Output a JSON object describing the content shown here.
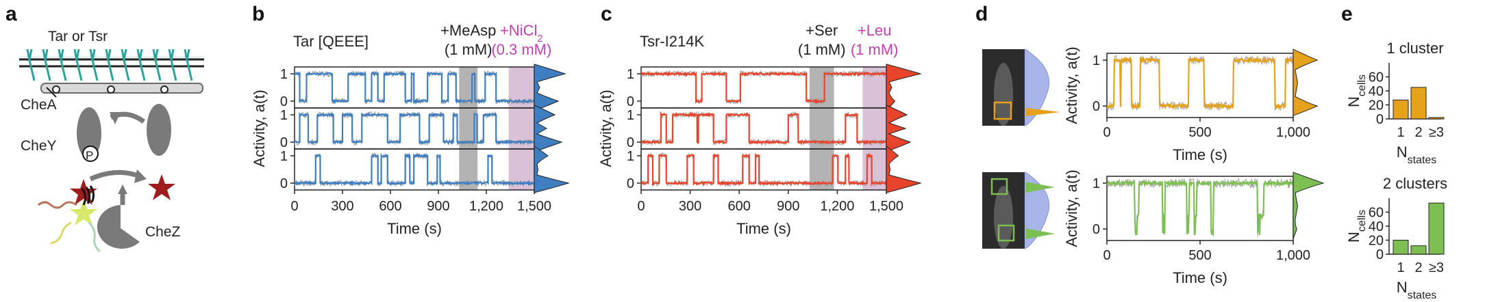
{
  "colors": {
    "tar": "#3f7fc1",
    "tsr": "#e8442b",
    "cluster1": "#e6a21a",
    "cluster2": "#7dbf52",
    "magenta": "#c03fae",
    "grey_band": "#9a9a9a",
    "pink_band": "#c9a8c7",
    "cell_density": "#a9b5e8"
  },
  "panel_labels": [
    "a",
    "b",
    "c",
    "d",
    "e"
  ],
  "panel_a": {
    "labels": {
      "receptor": "Tar or Tsr",
      "chea": "CheA",
      "chey": "CheY",
      "p": "P",
      "chez": "CheZ"
    },
    "icons": [
      "receptor-array-icon",
      "kinase-icon",
      "response-regulator-icon",
      "phosphatase-icon",
      "cycle-arrow-icon"
    ]
  },
  "chart_data": [
    {
      "type": "line",
      "panel": "b",
      "title": "Tar [QEEE]",
      "xlabel": "Time (s)",
      "ylabel": "Activity, a(t)",
      "xlim": [
        0,
        1500
      ],
      "ylim": [
        -0.25,
        1.25
      ],
      "xticks": [
        "0",
        "300",
        "600",
        "900",
        "1,200",
        "1,500"
      ],
      "yticks": [
        "0",
        "1"
      ],
      "color": "#3f7fc1",
      "annotations": [
        {
          "text": "+MeAsp",
          "sub": "(1 mM)",
          "start": 1030,
          "end": 1145,
          "color": "#222222"
        },
        {
          "text": "+NiCl",
          "subscript": "2",
          "sub": "(0.3 mM)",
          "start": 1340,
          "end": 1500,
          "color": "#c03fae"
        }
      ],
      "traces": [
        {
          "on_intervals": [
            [
              0,
              30
            ],
            [
              75,
              235
            ],
            [
              335,
              440
            ],
            [
              480,
              520
            ],
            [
              560,
              690
            ],
            [
              730,
              745
            ],
            [
              830,
              920
            ],
            [
              960,
              1010
            ],
            [
              1110,
              1125
            ],
            [
              1190,
              1260
            ]
          ],
          "density": [
            0.9,
            0.1,
            0.7
          ]
        },
        {
          "on_intervals": [
            [
              30,
              85
            ],
            [
              140,
              240
            ],
            [
              300,
              360
            ],
            [
              420,
              580
            ],
            [
              660,
              780
            ],
            [
              840,
              930
            ],
            [
              990,
              1015
            ],
            [
              1125,
              1140
            ],
            [
              1180,
              1260
            ]
          ],
          "density": [
            0.6,
            0.3,
            0.8
          ]
        },
        {
          "on_intervals": [
            [
              130,
              160
            ],
            [
              480,
              520
            ],
            [
              540,
              580
            ],
            [
              690,
              720
            ],
            [
              745,
              830
            ],
            [
              890,
              910
            ],
            [
              1210,
              1235
            ]
          ],
          "density": [
            0.4,
            0.05,
            1.0
          ]
        }
      ]
    },
    {
      "type": "line",
      "panel": "c",
      "title": "Tsr-I214K",
      "xlabel": "Time (s)",
      "ylabel": "Activity, a(t)",
      "xlim": [
        0,
        1500
      ],
      "ylim": [
        -0.25,
        1.25
      ],
      "xticks": [
        "0",
        "300",
        "600",
        "900",
        "1,200",
        "1,500"
      ],
      "yticks": [
        "0",
        "1"
      ],
      "color": "#e8442b",
      "annotations": [
        {
          "text": "+Ser",
          "sub": "(1 mM)",
          "start": 1030,
          "end": 1180,
          "color": "#222222"
        },
        {
          "text": "+Leu",
          "sub": "(1 mM)",
          "start": 1355,
          "end": 1500,
          "color": "#c03fae"
        }
      ],
      "traces": [
        {
          "on_intervals": [
            [
              0,
              335
            ],
            [
              370,
              520
            ],
            [
              605,
              1010
            ],
            [
              1120,
              1500
            ]
          ],
          "density": [
            1.0,
            0.1,
            0.25
          ]
        },
        {
          "on_intervals": [
            [
              120,
              150
            ],
            [
              190,
              340
            ],
            [
              350,
              440
            ],
            [
              520,
              660
            ],
            [
              900,
              960
            ],
            [
              1250,
              1320
            ]
          ],
          "density": [
            0.6,
            0.5,
            0.7
          ]
        },
        {
          "on_intervals": [
            [
              40,
              70
            ],
            [
              110,
              150
            ],
            [
              280,
              320
            ],
            [
              440,
              470
            ],
            [
              620,
              660
            ],
            [
              700,
              720
            ],
            [
              1170,
              1200
            ],
            [
              1250,
              1270
            ],
            [
              1380,
              1410
            ]
          ],
          "density": [
            0.35,
            0.05,
            1.0
          ]
        }
      ]
    },
    {
      "type": "line",
      "panel": "d",
      "title": "",
      "xlabel": "Time (s)",
      "ylabel": "Activity, a(t)",
      "xlim": [
        0,
        1000
      ],
      "ylim": [
        -0.25,
        1.15
      ],
      "xticks": [
        "0",
        "500",
        "1,000"
      ],
      "yticks": [
        "0",
        "1"
      ],
      "traces": [
        {
          "name": "",
          "color": "#e6a21a",
          "on_intervals": [
            [
              40,
              70
            ],
            [
              75,
              130
            ],
            [
              180,
              280
            ],
            [
              440,
              520
            ],
            [
              680,
              900
            ],
            [
              960,
              1000
            ]
          ],
          "density": [
            0.8,
            0.1,
            0.8
          ]
        },
        {
          "name": "",
          "color": "#7dbf52",
          "on_intervals": [
            [
              0,
              150
            ],
            [
              170,
              430
            ],
            [
              440,
              470
            ],
            [
              480,
              810
            ],
            [
              840,
              1000
            ]
          ],
          "dips": [
            [
              150,
              170
            ],
            [
              430,
              440
            ],
            [
              470,
              480
            ],
            [
              810,
              840
            ],
            [
              300,
              310
            ],
            [
              560,
              570
            ]
          ],
          "density": [
            1.0,
            0.1,
            0.12
          ]
        }
      ]
    },
    {
      "type": "bar",
      "panel": "e",
      "subplots": [
        {
          "title": "1 cluster",
          "categories": [
            "1",
            "2",
            "≥3"
          ],
          "values": [
            27,
            45,
            2
          ],
          "color": "#e6a21a",
          "ylim": [
            0,
            80
          ],
          "yticks": [
            "0",
            "20",
            "40",
            "60"
          ],
          "ylabel": "N",
          "ylabel_sub": "cells",
          "xlabel": "N",
          "xlabel_sub": "states"
        },
        {
          "title": "2 clusters",
          "categories": [
            "1",
            "2",
            "≥3"
          ],
          "values": [
            20,
            12,
            73
          ],
          "color": "#7dbf52",
          "ylim": [
            0,
            80
          ],
          "yticks": [
            "0",
            "20",
            "40",
            "60"
          ],
          "ylabel": "N",
          "ylabel_sub": "cells",
          "xlabel": "N",
          "xlabel_sub": "states"
        }
      ]
    }
  ]
}
